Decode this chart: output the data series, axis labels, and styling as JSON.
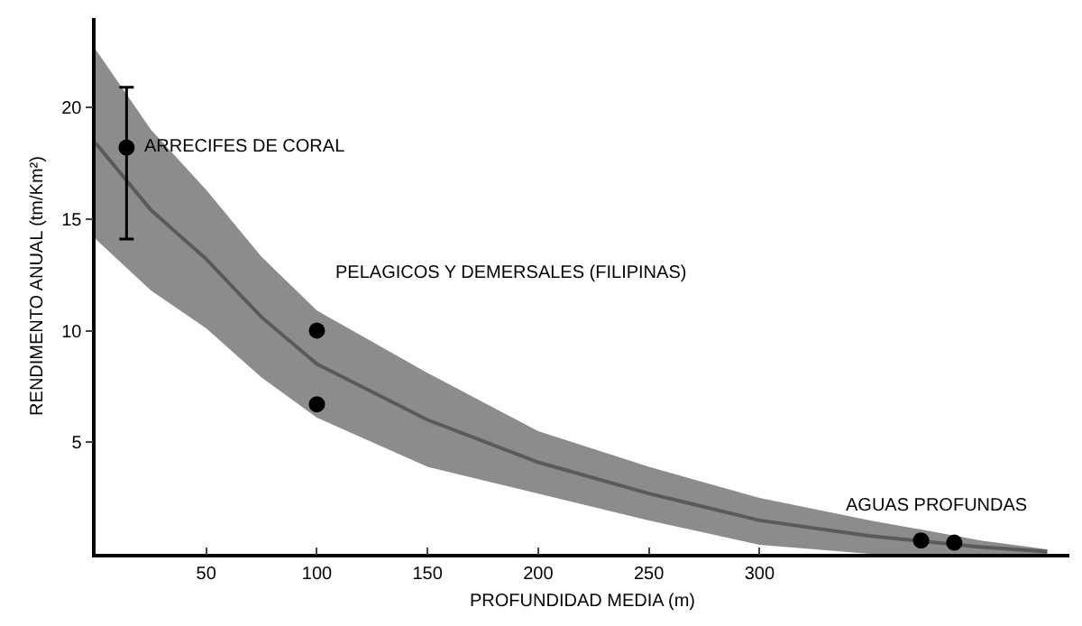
{
  "chart_data": {
    "type": "scatter",
    "xlabel": "PROFUNDIDAD MEDIA (m)",
    "ylabel": "RENDIMENTO ANUAL (tm/Km²)",
    "xlim": [
      0,
      440
    ],
    "ylim": [
      0,
      24
    ],
    "xticks": [
      50,
      100,
      150,
      200,
      250,
      300
    ],
    "yticks": [
      5,
      10,
      15,
      20
    ],
    "grid": false,
    "marker": "circle",
    "series": [
      {
        "type": "line",
        "color": "#5a5a5a",
        "marker": "none",
        "x": [
          0,
          25,
          50,
          75,
          100,
          150,
          200,
          250,
          300,
          350,
          400,
          430
        ],
        "values": [
          18.4,
          15.4,
          13.2,
          10.6,
          8.5,
          6,
          4.1,
          2.7,
          1.5,
          0.8,
          0.3,
          0.1
        ],
        "lower": [
          14.1,
          11.8,
          10.1,
          7.9,
          6.1,
          3.9,
          2.7,
          1.5,
          0.4,
          0,
          0,
          0
        ],
        "upper": [
          22.6,
          19,
          16.3,
          13.3,
          10.9,
          8.1,
          5.5,
          3.9,
          2.5,
          1.5,
          0.6,
          0.2
        ]
      },
      {
        "color": "#000000",
        "x": [
          14,
          100,
          100,
          373,
          388
        ],
        "values": [
          18.2,
          10,
          6.7,
          0.6,
          0.5
        ],
        "errors": [
          [
            14.1,
            20.9
          ],
          null,
          null,
          null,
          null
        ]
      }
    ],
    "annotations": [
      {
        "text": "ARRECIFES DE CORAL",
        "x": 14,
        "y": 18.2
      },
      {
        "text": "PELAGICOS Y DEMERSALES (FILIPINAS)",
        "x": 100,
        "y": 10
      },
      {
        "text": "AGUAS PROFUNDAS",
        "x": 380,
        "y": 0.6
      }
    ]
  }
}
